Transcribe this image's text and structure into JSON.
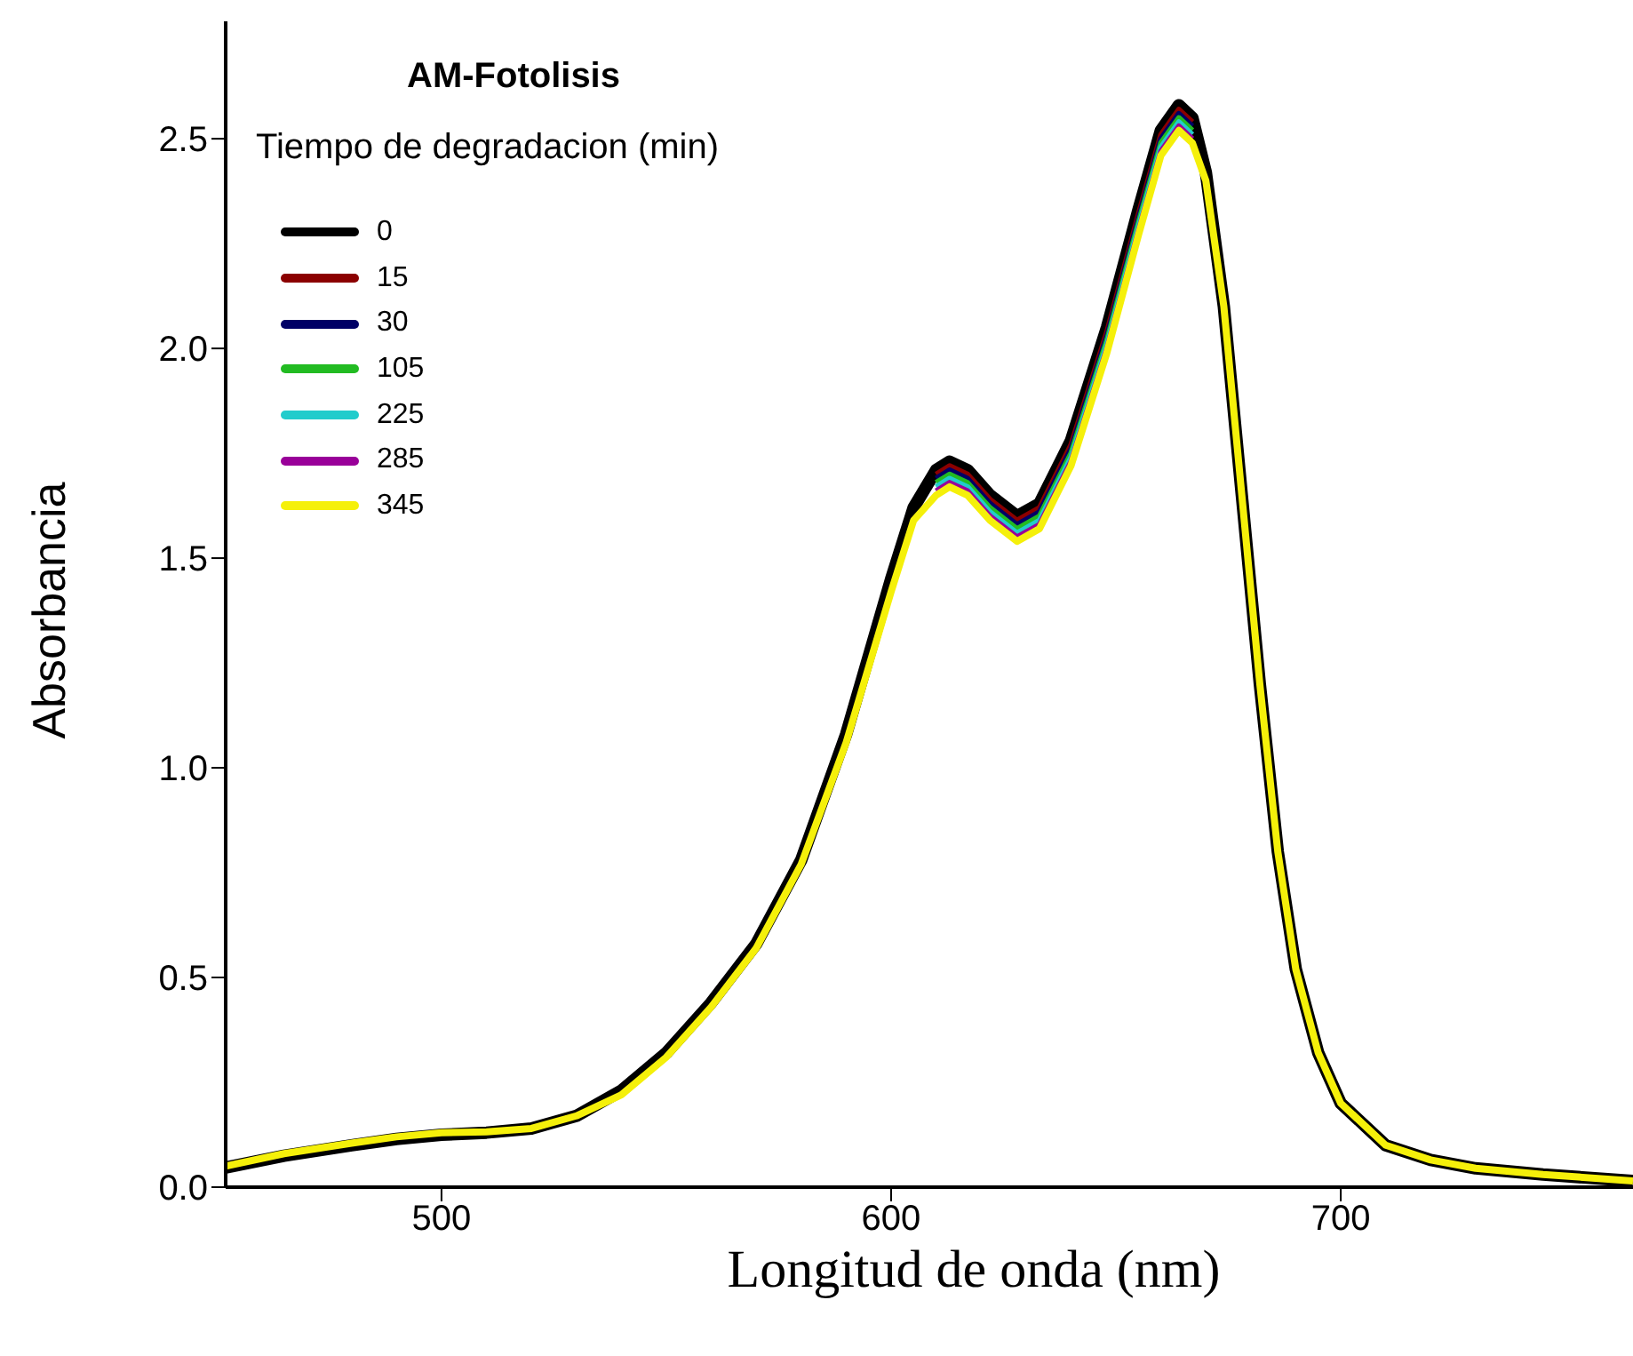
{
  "chart_data": {
    "type": "line",
    "title": "AM-Fotolisis",
    "legend_title": "Tiempo de degradacion (min)",
    "xlabel": "Longitud de onda (nm)",
    "ylabel": "Absorbancia",
    "x": [
      452,
      465,
      480,
      490,
      500,
      510,
      520,
      530,
      540,
      550,
      560,
      570,
      580,
      590,
      600,
      605,
      610,
      613,
      617,
      622,
      628,
      633,
      640,
      648,
      655,
      660,
      664,
      667,
      670,
      674,
      678,
      682,
      686,
      690,
      695,
      700,
      710,
      720,
      730,
      745,
      765
    ],
    "series": [
      {
        "name": "0",
        "color": "#000000",
        "values": [
          0.047,
          0.075,
          0.1,
          0.115,
          0.125,
          0.13,
          0.14,
          0.17,
          0.23,
          0.32,
          0.44,
          0.58,
          0.78,
          1.08,
          1.45,
          1.62,
          1.71,
          1.73,
          1.71,
          1.65,
          1.6,
          1.63,
          1.78,
          2.05,
          2.33,
          2.52,
          2.58,
          2.55,
          2.42,
          2.1,
          1.65,
          1.2,
          0.8,
          0.52,
          0.32,
          0.2,
          0.1,
          0.065,
          0.045,
          0.03,
          0.015
        ]
      },
      {
        "name": "15",
        "color": "#8b0000",
        "values": [
          null,
          null,
          null,
          null,
          null,
          null,
          null,
          null,
          null,
          null,
          null,
          null,
          null,
          null,
          null,
          null,
          1.7,
          1.72,
          1.7,
          1.64,
          1.59,
          1.62,
          1.77,
          2.04,
          2.32,
          2.51,
          2.57,
          2.54,
          null,
          null,
          null,
          null,
          null,
          null,
          null,
          null,
          null,
          null,
          null,
          null,
          null
        ]
      },
      {
        "name": "30",
        "color": "#000066",
        "values": [
          null,
          null,
          null,
          null,
          null,
          null,
          null,
          null,
          null,
          null,
          null,
          null,
          null,
          null,
          null,
          null,
          1.69,
          1.71,
          1.69,
          1.63,
          1.58,
          1.61,
          1.76,
          2.03,
          2.31,
          2.5,
          2.56,
          2.53,
          null,
          null,
          null,
          null,
          null,
          null,
          null,
          null,
          null,
          null,
          null,
          null,
          null
        ]
      },
      {
        "name": "105",
        "color": "#22bb22",
        "values": [
          null,
          null,
          null,
          null,
          null,
          null,
          null,
          null,
          null,
          null,
          null,
          null,
          null,
          null,
          null,
          null,
          1.68,
          1.7,
          1.68,
          1.62,
          1.57,
          1.6,
          1.75,
          2.02,
          2.3,
          2.49,
          2.55,
          2.52,
          null,
          null,
          null,
          null,
          null,
          null,
          null,
          null,
          null,
          null,
          null,
          null,
          null
        ]
      },
      {
        "name": "225",
        "color": "#22cccc",
        "values": [
          null,
          null,
          null,
          null,
          null,
          null,
          null,
          null,
          null,
          null,
          null,
          null,
          null,
          null,
          null,
          null,
          1.67,
          1.69,
          1.67,
          1.61,
          1.56,
          1.59,
          1.74,
          2.01,
          2.29,
          2.48,
          2.54,
          2.51,
          null,
          null,
          null,
          null,
          null,
          null,
          null,
          null,
          null,
          null,
          null,
          null,
          null
        ]
      },
      {
        "name": "285",
        "color": "#990099",
        "values": [
          null,
          null,
          null,
          null,
          null,
          null,
          null,
          null,
          null,
          null,
          null,
          null,
          null,
          null,
          null,
          null,
          1.66,
          1.68,
          1.66,
          1.6,
          1.55,
          1.58,
          1.73,
          2.0,
          2.28,
          2.47,
          2.53,
          2.5,
          null,
          null,
          null,
          null,
          null,
          null,
          null,
          null,
          null,
          null,
          null,
          null,
          null
        ]
      },
      {
        "name": "345",
        "color": "#f5f00a",
        "values": [
          0.05,
          0.08,
          0.105,
          0.12,
          0.13,
          0.132,
          0.14,
          0.17,
          0.22,
          0.31,
          0.43,
          0.57,
          0.77,
          1.06,
          1.42,
          1.59,
          1.65,
          1.67,
          1.65,
          1.59,
          1.54,
          1.57,
          1.72,
          1.99,
          2.27,
          2.46,
          2.52,
          2.49,
          2.4,
          2.1,
          1.65,
          1.2,
          0.8,
          0.52,
          0.32,
          0.2,
          0.1,
          0.065,
          0.045,
          0.03,
          0.015
        ]
      }
    ],
    "xlim": [
      452,
      765
    ],
    "xticks": [
      500,
      600,
      700
    ],
    "ylim": [
      0,
      2.78
    ],
    "yticks": [
      {
        "value": 0,
        "label": "0.0"
      },
      {
        "value": 0.5,
        "label": "0.5"
      },
      {
        "value": 1,
        "label": "1.0"
      },
      {
        "value": 1.5,
        "label": "1.5"
      },
      {
        "value": 2,
        "label": "2.0"
      },
      {
        "value": 2.5,
        "label": "2.5"
      }
    ],
    "grid": false,
    "legend": "top left",
    "marker": "none",
    "line_style": "solid"
  }
}
